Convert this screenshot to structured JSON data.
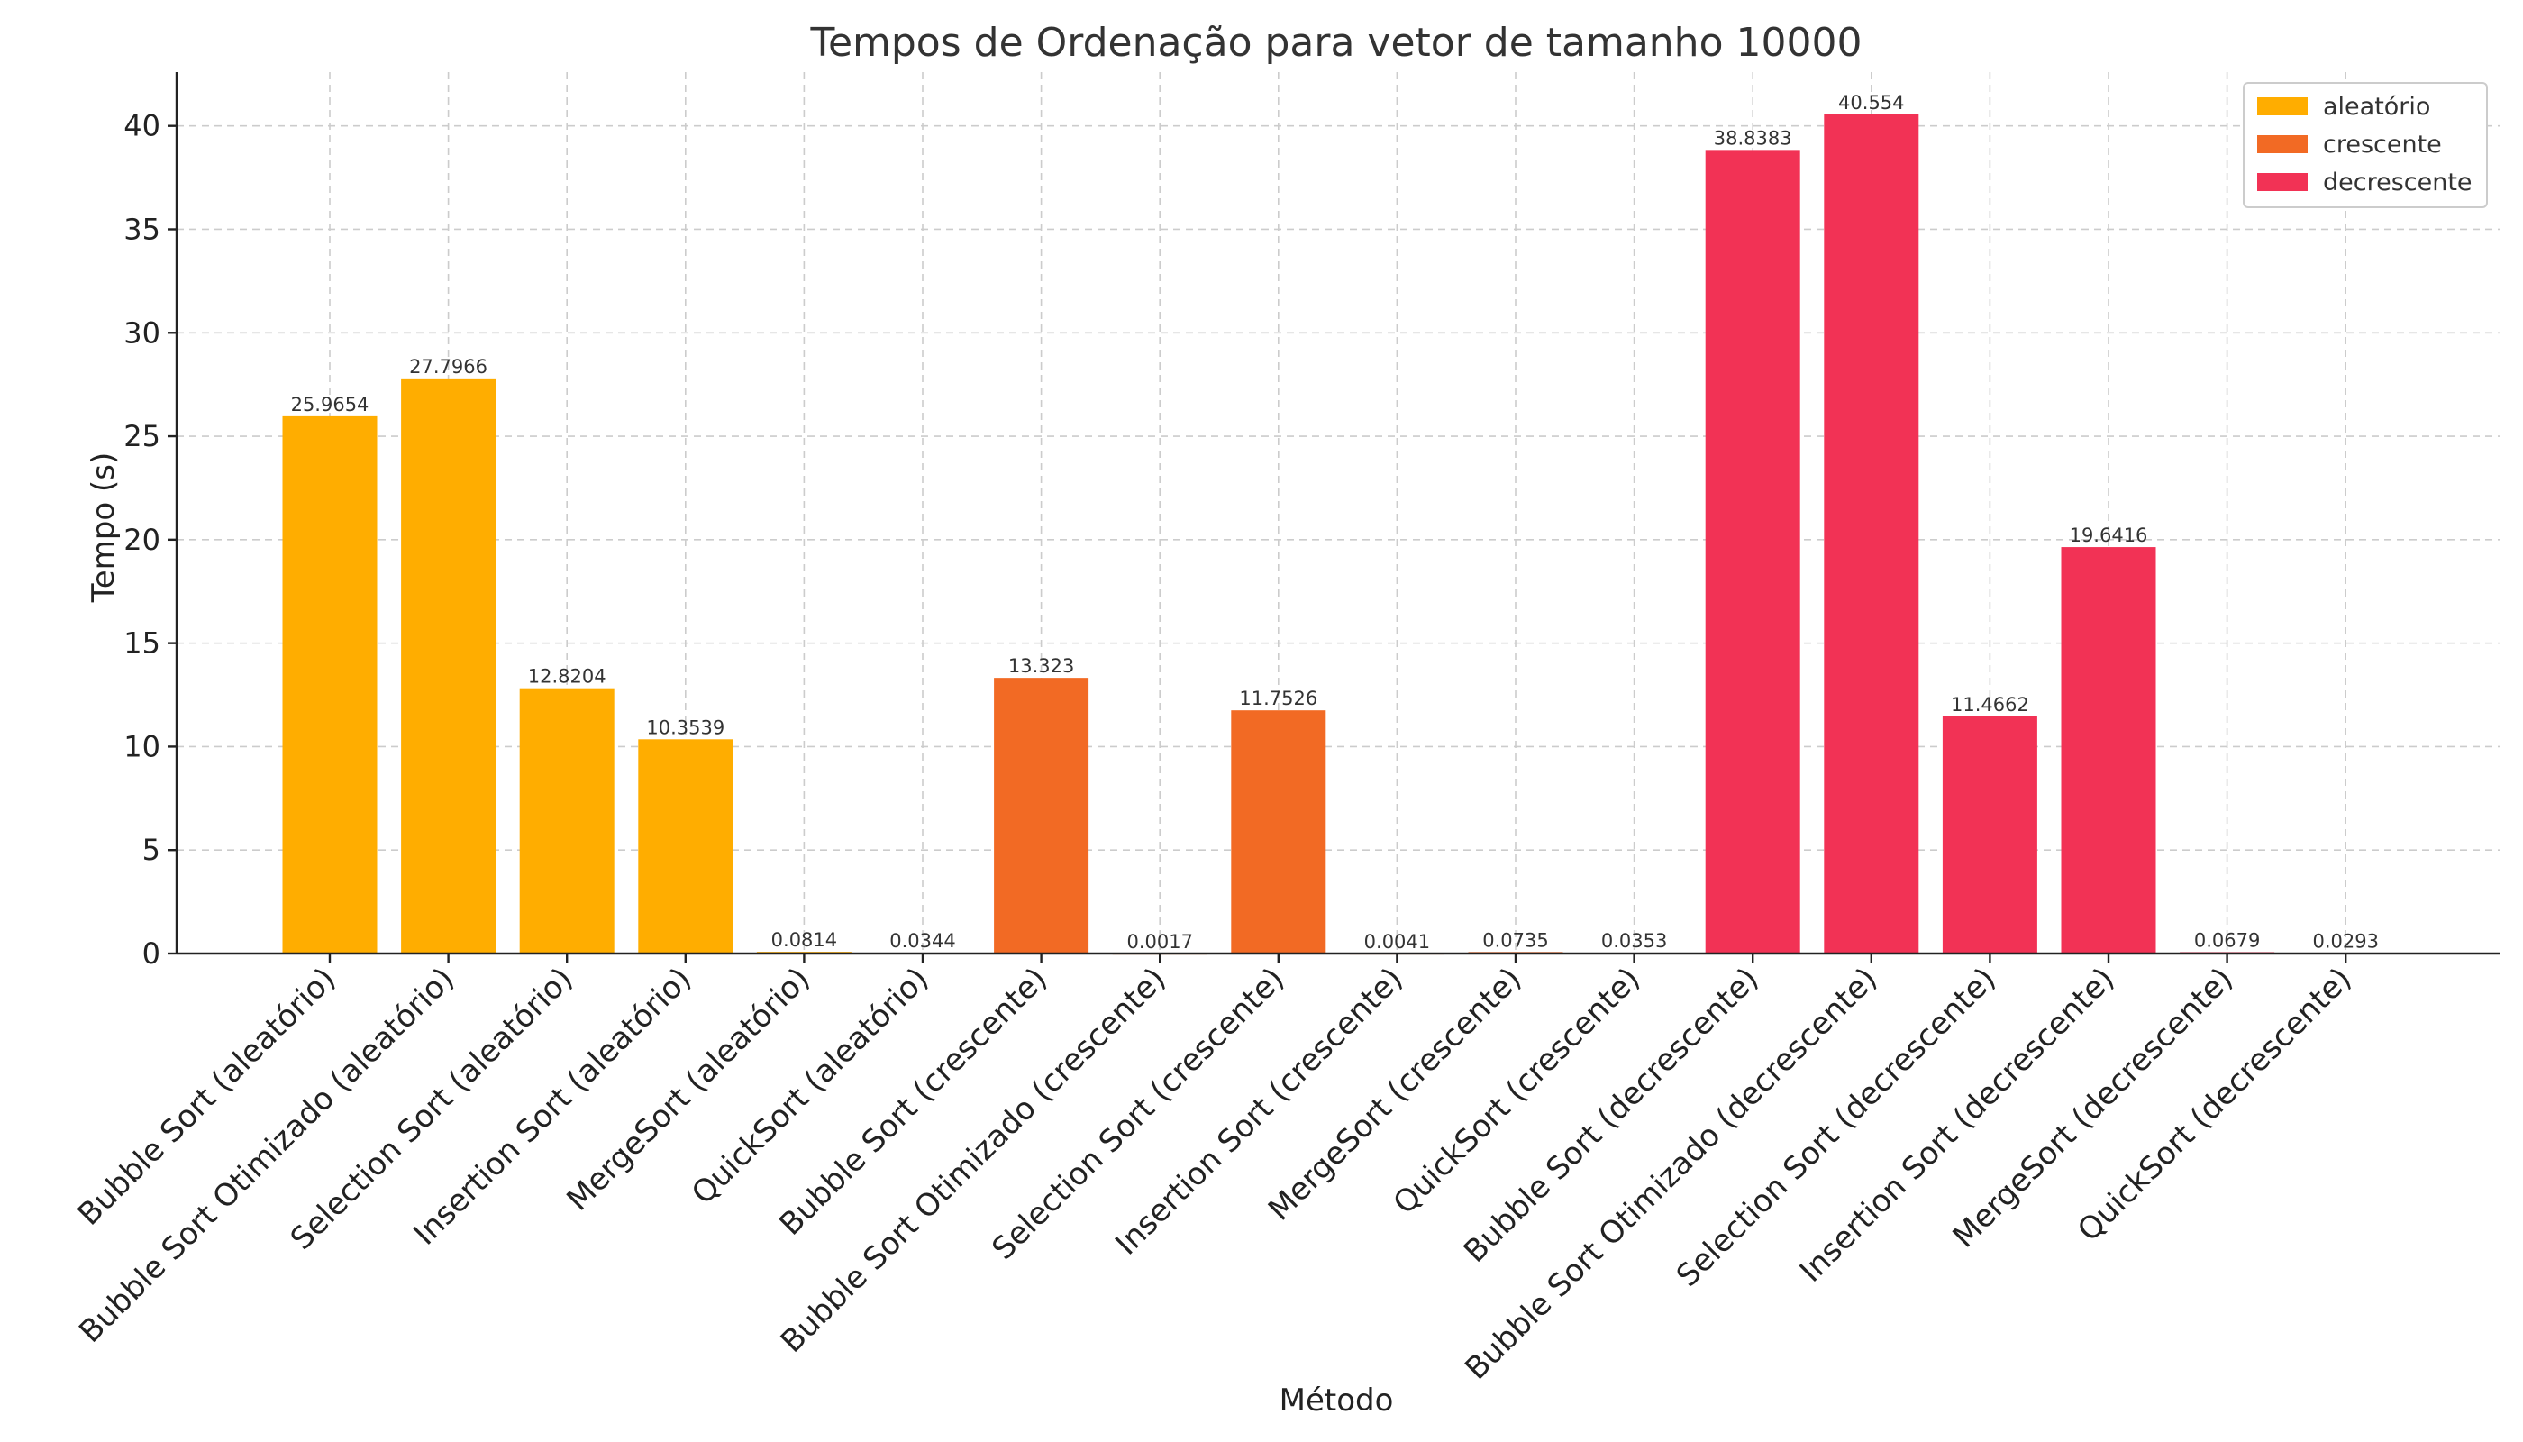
{
  "chart_data": {
    "type": "bar",
    "title": "Tempos de Ordenação para vetor de tamanho 10000",
    "xlabel": "Método",
    "ylabel": "Tempo (s)",
    "ylim": [
      0,
      42.6
    ],
    "yticks": [
      0,
      5,
      10,
      15,
      20,
      25,
      30,
      35,
      40
    ],
    "grid": true,
    "legend_position": "top-right",
    "series_colors": {
      "aleatório": "#FFAD00",
      "crescente": "#F26A24",
      "decrescente": "#F23255"
    },
    "legend": [
      "aleatório",
      "crescente",
      "decrescente"
    ],
    "categories": [
      "Bubble Sort (aleatório)",
      "Bubble Sort Otimizado (aleatório)",
      "Selection Sort (aleatório)",
      "Insertion Sort (aleatório)",
      "MergeSort (aleatório)",
      "QuickSort (aleatório)",
      "Bubble Sort (crescente)",
      "Bubble Sort Otimizado (crescente)",
      "Selection Sort (crescente)",
      "Insertion Sort (crescente)",
      "MergeSort (crescente)",
      "QuickSort (crescente)",
      "Bubble Sort (decrescente)",
      "Bubble Sort Otimizado (decrescente)",
      "Selection Sort (decrescente)",
      "Insertion Sort (decrescente)",
      "MergeSort (decrescente)",
      "QuickSort (decrescente)"
    ],
    "values": [
      25.9654,
      27.7966,
      12.8204,
      10.3539,
      0.0814,
      0.0344,
      13.323,
      0.0017,
      11.7526,
      0.0041,
      0.0735,
      0.0353,
      38.8383,
      40.554,
      11.4662,
      19.6416,
      0.0679,
      0.0293
    ],
    "value_labels": [
      "25.9654",
      "27.7966",
      "12.8204",
      "10.3539",
      "0.0814",
      "0.0344",
      "13.323",
      "0.0017",
      "11.7526",
      "0.0041",
      "0.0735",
      "0.0353",
      "38.8383",
      "40.554",
      "11.4662",
      "19.6416",
      "0.0679",
      "0.0293"
    ],
    "bar_series": [
      "aleatório",
      "aleatório",
      "aleatório",
      "aleatório",
      "aleatório",
      "aleatório",
      "crescente",
      "crescente",
      "crescente",
      "crescente",
      "crescente",
      "crescente",
      "decrescente",
      "decrescente",
      "decrescente",
      "decrescente",
      "decrescente",
      "decrescente"
    ]
  }
}
